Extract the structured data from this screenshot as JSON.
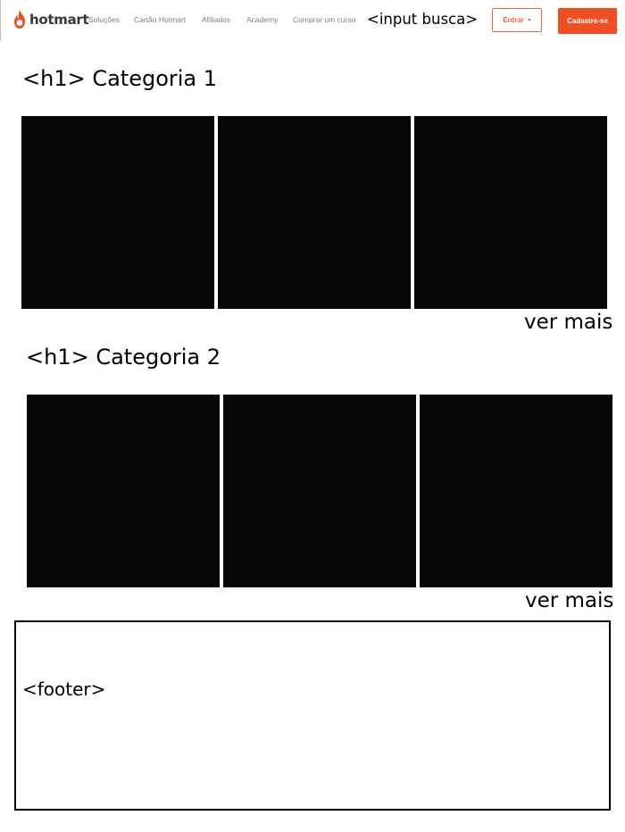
{
  "header": {
    "logo_text": "hotmart",
    "logo_icon": "hotmart-flame-icon",
    "nav": [
      {
        "label": "Soluções"
      },
      {
        "label": "Cartão Hotmart"
      },
      {
        "label": "Afiliados"
      },
      {
        "label": "Academy"
      },
      {
        "label": "Comprar um curso"
      }
    ],
    "search_placeholder": "<input busca>",
    "login_label": "Entrar",
    "login_icon": "caret-down-icon",
    "signup_label": "Cadastre-se"
  },
  "categories": [
    {
      "title": "<h1> Categoria 1",
      "more_label": "ver mais"
    },
    {
      "title": "<h1> Categoria 2",
      "more_label": "ver mais"
    }
  ],
  "footer": {
    "label": "<footer>"
  },
  "colors": {
    "brand": "#f04e23",
    "brand_outline": "#f0643c",
    "nav_text": "#7b7f84",
    "logo_text": "#343a40",
    "tile": "#070707"
  }
}
